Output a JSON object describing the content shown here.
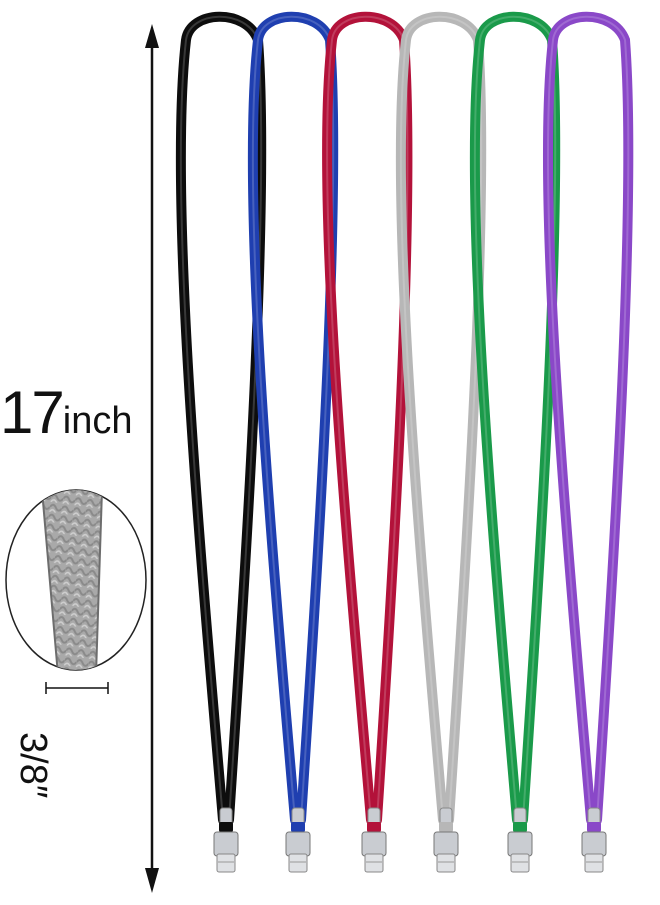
{
  "product_image": {
    "length_value": "17",
    "length_unit": "inch",
    "width_label": "3/8″",
    "lanyards": [
      {
        "color_name": "black",
        "color": "#0d0d0d"
      },
      {
        "color_name": "blue",
        "color": "#1f3fb0"
      },
      {
        "color_name": "red",
        "color": "#b3123a"
      },
      {
        "color_name": "gray",
        "color": "#b7b7b7"
      },
      {
        "color_name": "green",
        "color": "#1a9a4a"
      },
      {
        "color_name": "purple",
        "color": "#8a48c8"
      }
    ],
    "clip_color": "#c9ccd1"
  }
}
